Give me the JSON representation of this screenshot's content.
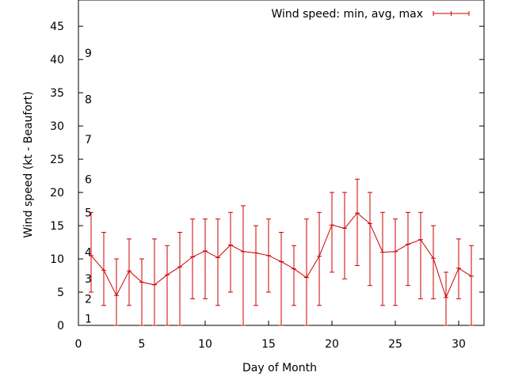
{
  "chart_data": {
    "type": "line",
    "xlabel": "Day of Month",
    "ylabel": "Wind speed (kt - Beaufort)",
    "xlim": [
      0,
      32
    ],
    "ylim": [
      0,
      48
    ],
    "x_ticks": [
      "0",
      "5",
      "10",
      "15",
      "20",
      "25",
      "30"
    ],
    "y_ticks": [
      "0",
      "5",
      "10",
      "15",
      "20",
      "25",
      "30",
      "35",
      "40",
      "45"
    ],
    "grid": false,
    "legend_position": "top-right",
    "beaufort_labels": [
      {
        "label": "1",
        "y": 1
      },
      {
        "label": "2",
        "y": 4
      },
      {
        "label": "3",
        "y": 7
      },
      {
        "label": "4",
        "y": 11
      },
      {
        "label": "5",
        "y": 17
      },
      {
        "label": "6",
        "y": 22
      },
      {
        "label": "7",
        "y": 28
      },
      {
        "label": "8",
        "y": 34
      },
      {
        "label": "9",
        "y": 41
      }
    ],
    "series": [
      {
        "name": "Wind speed: min, avg, max",
        "color": "#cc0000",
        "points": [
          {
            "x": 1,
            "min": 5,
            "avg": 10.5,
            "max": 17
          },
          {
            "x": 2,
            "min": 3,
            "avg": 8.3,
            "max": 14
          },
          {
            "x": 3,
            "min": 0,
            "avg": 4.5,
            "max": 10
          },
          {
            "x": 4,
            "min": 3,
            "avg": 8.2,
            "max": 13
          },
          {
            "x": 5,
            "min": 0,
            "avg": 6.5,
            "max": 10
          },
          {
            "x": 6,
            "min": 0,
            "avg": 6.1,
            "max": 13
          },
          {
            "x": 7,
            "min": 0,
            "avg": 7.6,
            "max": 12
          },
          {
            "x": 8,
            "min": 0,
            "avg": 8.8,
            "max": 14
          },
          {
            "x": 9,
            "min": 4,
            "avg": 10.3,
            "max": 16
          },
          {
            "x": 10,
            "min": 4,
            "avg": 11.2,
            "max": 16
          },
          {
            "x": 11,
            "min": 3,
            "avg": 10.2,
            "max": 16
          },
          {
            "x": 12,
            "min": 5,
            "avg": 12.1,
            "max": 17
          },
          {
            "x": 13,
            "min": 0,
            "avg": 11.1,
            "max": 18
          },
          {
            "x": 14,
            "min": 3,
            "avg": 10.9,
            "max": 15
          },
          {
            "x": 15,
            "min": 5,
            "avg": 10.5,
            "max": 16
          },
          {
            "x": 16,
            "min": 0,
            "avg": 9.6,
            "max": 14
          },
          {
            "x": 17,
            "min": 3,
            "avg": 8.5,
            "max": 12
          },
          {
            "x": 18,
            "min": 0,
            "avg": 7.2,
            "max": 16
          },
          {
            "x": 19,
            "min": 3,
            "avg": 10.4,
            "max": 17
          },
          {
            "x": 20,
            "min": 8,
            "avg": 15.1,
            "max": 20
          },
          {
            "x": 21,
            "min": 7,
            "avg": 14.6,
            "max": 20
          },
          {
            "x": 22,
            "min": 9,
            "avg": 16.9,
            "max": 22
          },
          {
            "x": 23,
            "min": 6,
            "avg": 15.3,
            "max": 20
          },
          {
            "x": 24,
            "min": 3,
            "avg": 11.0,
            "max": 17
          },
          {
            "x": 25,
            "min": 3,
            "avg": 11.1,
            "max": 16
          },
          {
            "x": 26,
            "min": 6,
            "avg": 12.2,
            "max": 17
          },
          {
            "x": 27,
            "min": 4,
            "avg": 12.9,
            "max": 17
          },
          {
            "x": 28,
            "min": 4,
            "avg": 10.1,
            "max": 15
          },
          {
            "x": 29,
            "min": 0,
            "avg": 4.2,
            "max": 8
          },
          {
            "x": 30,
            "min": 4,
            "avg": 8.6,
            "max": 13
          },
          {
            "x": 31,
            "min": 0,
            "avg": 7.4,
            "max": 12
          }
        ]
      }
    ]
  }
}
